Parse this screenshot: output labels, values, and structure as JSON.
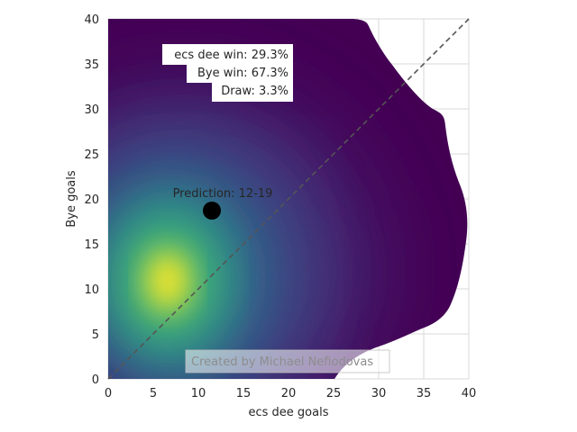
{
  "chart_data": {
    "type": "heatmap",
    "title": "",
    "xlabel": "ecs dee goals",
    "ylabel": "Bye goals",
    "xlim": [
      0,
      40
    ],
    "ylim": [
      0,
      40
    ],
    "xticks": [
      0,
      5,
      10,
      15,
      20,
      25,
      30,
      35,
      40
    ],
    "yticks": [
      0,
      5,
      10,
      15,
      20,
      25,
      30,
      35,
      40
    ],
    "grid": true,
    "colormap": "viridis",
    "density_peak": {
      "x": 6.5,
      "y": 10.5
    },
    "diagonal_line": {
      "from": [
        0,
        0
      ],
      "to": [
        40,
        40
      ],
      "style": "dashed",
      "color": "#555555"
    },
    "prediction_point": {
      "x": 11.5,
      "y": 18.7,
      "color": "#000000"
    },
    "prediction_label": "Prediction: 12-19",
    "outcome_stats": [
      {
        "label": "ecs dee win: 29.3%"
      },
      {
        "label": "Bye win: 67.3%"
      },
      {
        "label": "Draw: 3.3%"
      }
    ],
    "credit": "Created by Michael Nefiodovas",
    "colors": {
      "grid": "#d9d9d9",
      "background": "#ffffff"
    }
  }
}
